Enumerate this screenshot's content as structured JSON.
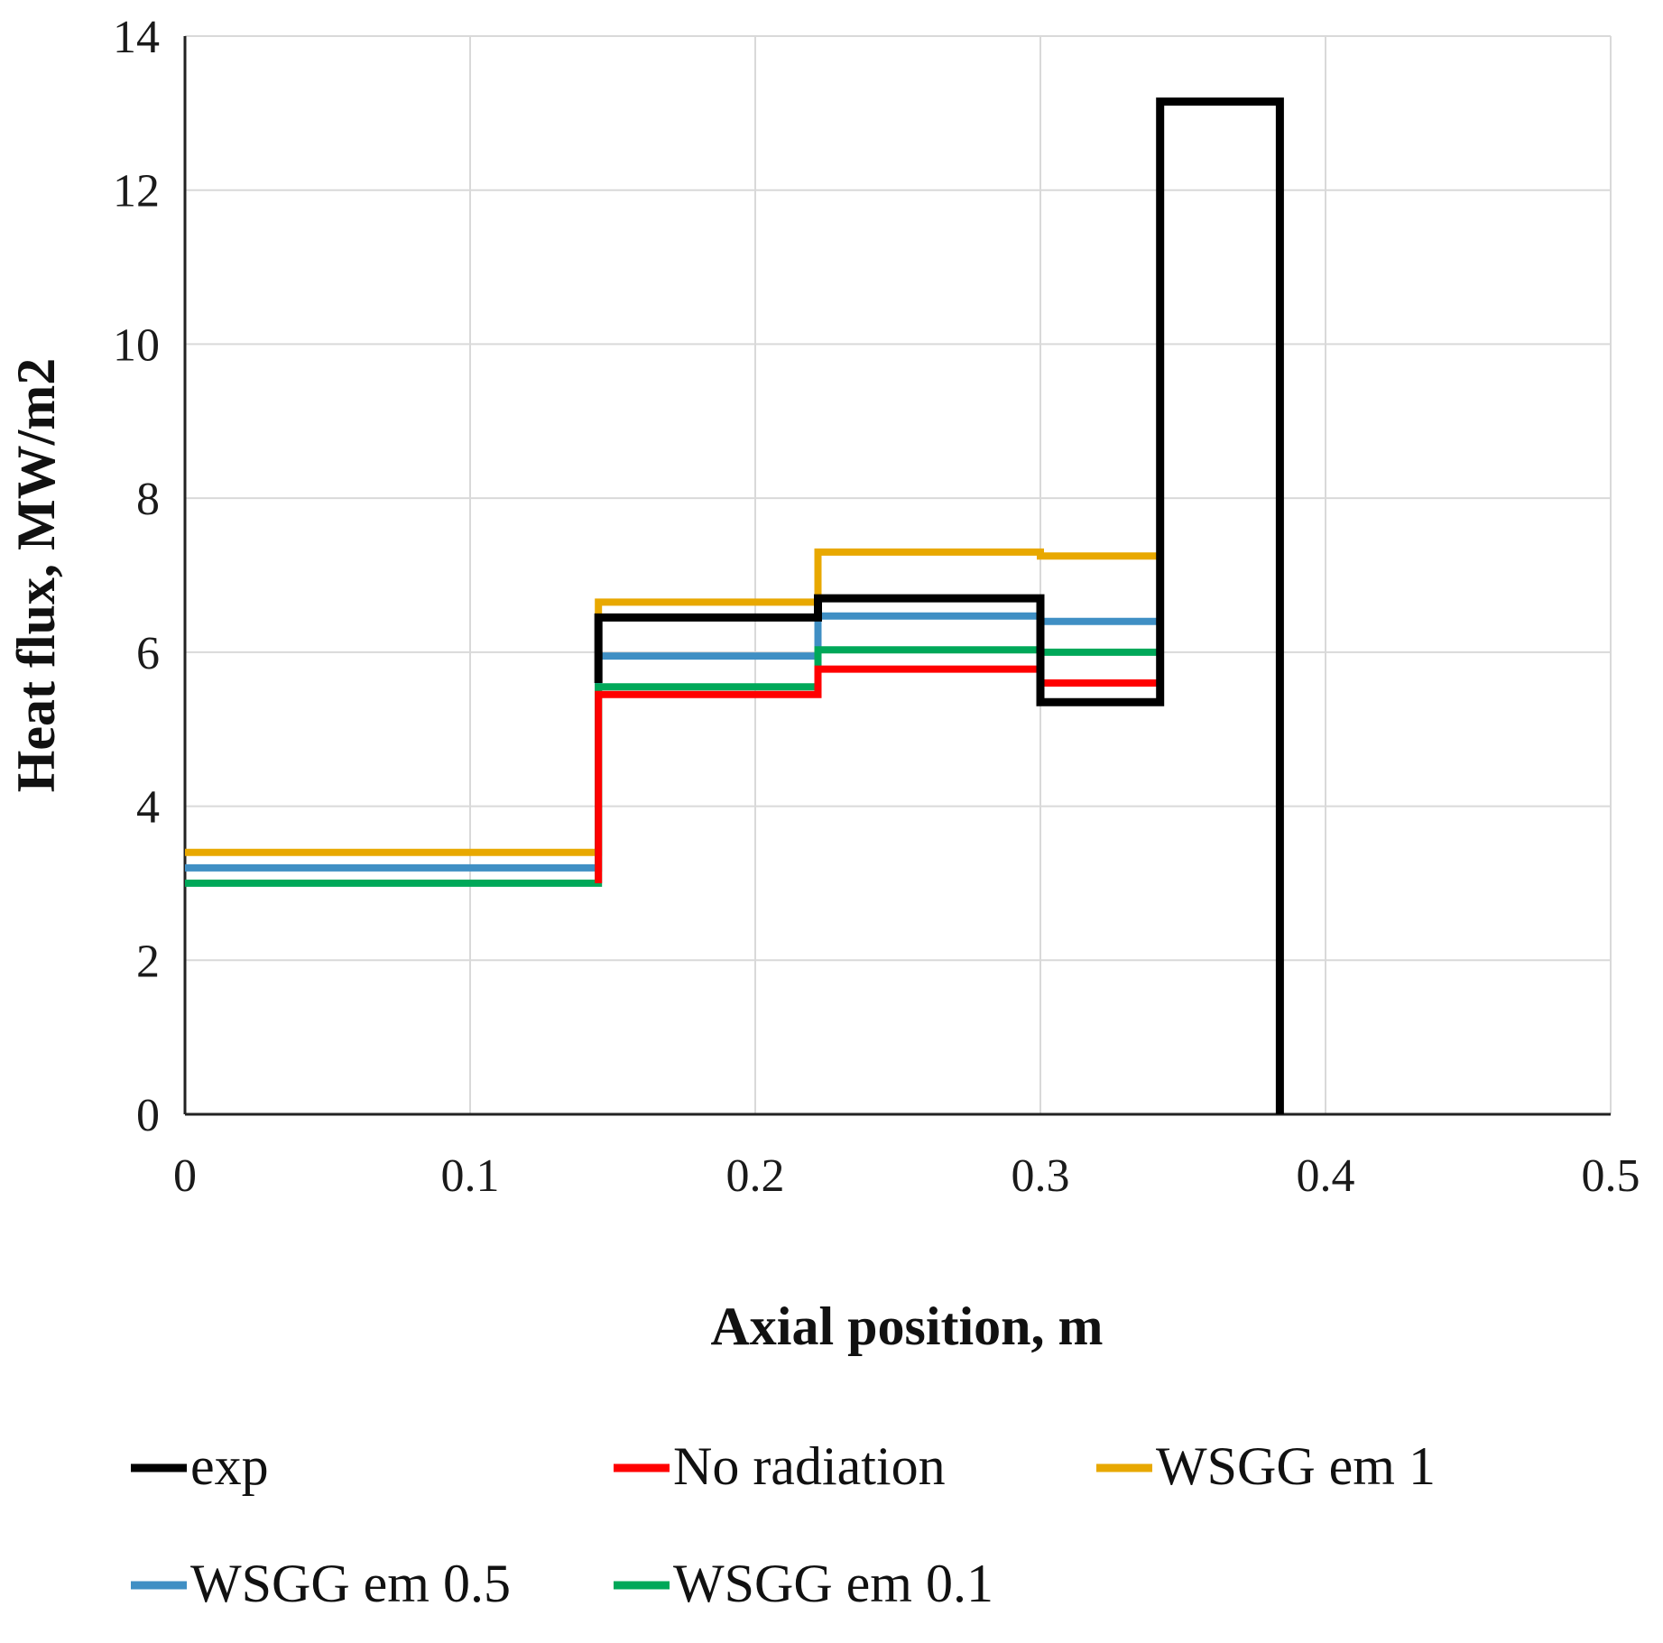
{
  "chart_data": {
    "type": "line",
    "title": "",
    "xlabel": "Axial position, m",
    "ylabel": "Heat flux, MW/m2",
    "xlim": [
      0,
      0.5
    ],
    "ylim": [
      0,
      14
    ],
    "grid": true,
    "legend_position": "bottom",
    "x_ticks": [
      0,
      0.1,
      0.2,
      0.3,
      0.4,
      0.5
    ],
    "x_tick_labels": [
      "0",
      "0.1",
      "0.2",
      "0.3",
      "0.4",
      "0.5"
    ],
    "y_ticks": [
      0,
      2,
      4,
      6,
      8,
      10,
      12,
      14
    ],
    "y_tick_labels": [
      "0",
      "2",
      "4",
      "6",
      "8",
      "10",
      "12",
      "14"
    ],
    "series": [
      {
        "name": "exp",
        "color": "#000000",
        "x": [
          0.145,
          0.145,
          0.222,
          0.222,
          0.3,
          0.3,
          0.342,
          0.342,
          0.384,
          0.384
        ],
        "y": [
          5.6,
          6.45,
          6.45,
          6.7,
          6.7,
          5.35,
          5.35,
          13.15,
          13.15,
          0
        ]
      },
      {
        "name": "No radiation",
        "color": "#ff0000",
        "x": [
          0.145,
          0.145,
          0.222,
          0.222,
          0.3,
          0.3,
          0.342
        ],
        "y": [
          3.0,
          5.45,
          5.45,
          5.78,
          5.78,
          5.6,
          5.6
        ]
      },
      {
        "name": "WSGG em 1",
        "color": "#e8a800",
        "x": [
          0,
          0.145,
          0.145,
          0.222,
          0.222,
          0.3,
          0.3,
          0.342
        ],
        "y": [
          3.4,
          3.4,
          6.65,
          6.65,
          7.3,
          7.3,
          7.25,
          7.25
        ]
      },
      {
        "name": "WSGG em 0.5",
        "color": "#3f8fc4",
        "x": [
          0,
          0.145,
          0.145,
          0.222,
          0.222,
          0.3,
          0.3,
          0.342
        ],
        "y": [
          3.2,
          3.2,
          5.95,
          5.95,
          6.47,
          6.47,
          6.4,
          6.4
        ]
      },
      {
        "name": "WSGG em 0.1",
        "color": "#00a859",
        "x": [
          0,
          0.145,
          0.145,
          0.222,
          0.222,
          0.3,
          0.3,
          0.342
        ],
        "y": [
          3.0,
          3.0,
          5.55,
          5.55,
          6.03,
          6.03,
          6.0,
          6.0
        ]
      }
    ],
    "legend": [
      {
        "label": "exp",
        "color": "#000000"
      },
      {
        "label": "No radiation",
        "color": "#ff0000"
      },
      {
        "label": "WSGG em 1",
        "color": "#e8a800"
      },
      {
        "label": "WSGG em 0.5",
        "color": "#3f8fc4"
      },
      {
        "label": "WSGG em 0.1",
        "color": "#00a859"
      }
    ]
  }
}
